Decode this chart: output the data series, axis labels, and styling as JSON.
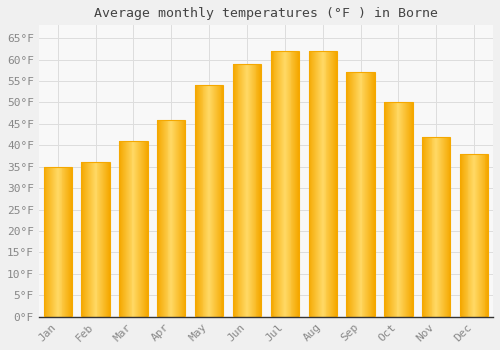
{
  "title": "Average monthly temperatures (°F ) in Borne",
  "months": [
    "Jan",
    "Feb",
    "Mar",
    "Apr",
    "May",
    "Jun",
    "Jul",
    "Aug",
    "Sep",
    "Oct",
    "Nov",
    "Dec"
  ],
  "values": [
    35,
    36,
    41,
    46,
    54,
    59,
    62,
    62,
    57,
    50,
    42,
    38
  ],
  "bar_color_center": "#FFD966",
  "bar_color_edge": "#F5A800",
  "background_color": "#F0F0F0",
  "plot_bg_color": "#F8F8F8",
  "grid_color": "#DDDDDD",
  "tick_label_color": "#888888",
  "title_color": "#444444",
  "spine_color": "#333333",
  "ylim": [
    0,
    68
  ],
  "yticks": [
    0,
    5,
    10,
    15,
    20,
    25,
    30,
    35,
    40,
    45,
    50,
    55,
    60,
    65
  ],
  "figsize": [
    5.0,
    3.5
  ],
  "dpi": 100,
  "bar_width": 0.75
}
